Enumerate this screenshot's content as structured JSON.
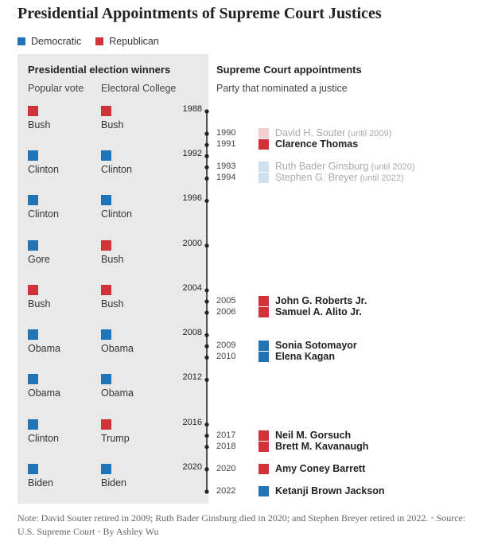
{
  "title": "Presidential Appointments of Supreme Court Justices",
  "legend": [
    {
      "label": "Democratic",
      "color": "#1f74b8"
    },
    {
      "label": "Republican",
      "color": "#cf3339"
    }
  ],
  "left_panel": {
    "heading": "Presidential election winners",
    "col1": "Popular vote",
    "col2": "Electoral College"
  },
  "right_panel": {
    "heading": "Supreme Court appointments",
    "subheading": "Party that nominated a justice"
  },
  "note": "Note: David Souter retired in 2009; Ruth Bader Ginsburg died in 2020; and Stephen Breyer retired in 2022.",
  "source": "Source: U.S. Supreme Court",
  "byline": "By Ashley Wu",
  "colors": {
    "democratic": "#1f74b8",
    "republican": "#cf3339",
    "democratic_faded": "#cfe0ee",
    "republican_faded": "#f2cfcf"
  },
  "chart_data": {
    "type": "timeline",
    "elections": [
      {
        "year": 1988,
        "popular": {
          "winner": "Bush",
          "party": "Republican"
        },
        "electoral": {
          "winner": "Bush",
          "party": "Republican"
        }
      },
      {
        "year": 1992,
        "popular": {
          "winner": "Clinton",
          "party": "Democratic"
        },
        "electoral": {
          "winner": "Clinton",
          "party": "Democratic"
        }
      },
      {
        "year": 1996,
        "popular": {
          "winner": "Clinton",
          "party": "Democratic"
        },
        "electoral": {
          "winner": "Clinton",
          "party": "Democratic"
        }
      },
      {
        "year": 2000,
        "popular": {
          "winner": "Gore",
          "party": "Democratic"
        },
        "electoral": {
          "winner": "Bush",
          "party": "Republican"
        }
      },
      {
        "year": 2004,
        "popular": {
          "winner": "Bush",
          "party": "Republican"
        },
        "electoral": {
          "winner": "Bush",
          "party": "Republican"
        }
      },
      {
        "year": 2008,
        "popular": {
          "winner": "Obama",
          "party": "Democratic"
        },
        "electoral": {
          "winner": "Obama",
          "party": "Democratic"
        }
      },
      {
        "year": 2012,
        "popular": {
          "winner": "Obama",
          "party": "Democratic"
        },
        "electoral": {
          "winner": "Obama",
          "party": "Democratic"
        }
      },
      {
        "year": 2016,
        "popular": {
          "winner": "Clinton",
          "party": "Democratic"
        },
        "electoral": {
          "winner": "Trump",
          "party": "Republican"
        }
      },
      {
        "year": 2020,
        "popular": {
          "winner": "Biden",
          "party": "Democratic"
        },
        "electoral": {
          "winner": "Biden",
          "party": "Democratic"
        }
      }
    ],
    "appointments": [
      {
        "year": 1990,
        "justice": "David H. Souter",
        "note": "(until 2009)",
        "party": "Republican",
        "serving": false
      },
      {
        "year": 1991,
        "justice": "Clarence Thomas",
        "note": "",
        "party": "Republican",
        "serving": true
      },
      {
        "year": 1993,
        "justice": "Ruth Bader Ginsburg",
        "note": "(until 2020)",
        "party": "Democratic",
        "serving": false
      },
      {
        "year": 1994,
        "justice": "Stephen G. Breyer",
        "note": "(until 2022)",
        "party": "Democratic",
        "serving": false
      },
      {
        "year": 2005,
        "justice": "John G. Roberts Jr.",
        "note": "",
        "party": "Republican",
        "serving": true
      },
      {
        "year": 2006,
        "justice": "Samuel A. Alito Jr.",
        "note": "",
        "party": "Republican",
        "serving": true
      },
      {
        "year": 2009,
        "justice": "Sonia Sotomayor",
        "note": "",
        "party": "Democratic",
        "serving": true
      },
      {
        "year": 2010,
        "justice": "Elena Kagan",
        "note": "",
        "party": "Democratic",
        "serving": true
      },
      {
        "year": 2017,
        "justice": "Neil M. Gorsuch",
        "note": "",
        "party": "Republican",
        "serving": true
      },
      {
        "year": 2018,
        "justice": "Brett M. Kavanaugh",
        "note": "",
        "party": "Republican",
        "serving": true
      },
      {
        "year": 2020,
        "justice": "Amy Coney Barrett",
        "note": "",
        "party": "Republican",
        "serving": true
      },
      {
        "year": 2022,
        "justice": "Ketanji Brown Jackson",
        "note": "",
        "party": "Democratic",
        "serving": true
      }
    ],
    "axis": {
      "min": 1988,
      "max": 2022
    }
  }
}
